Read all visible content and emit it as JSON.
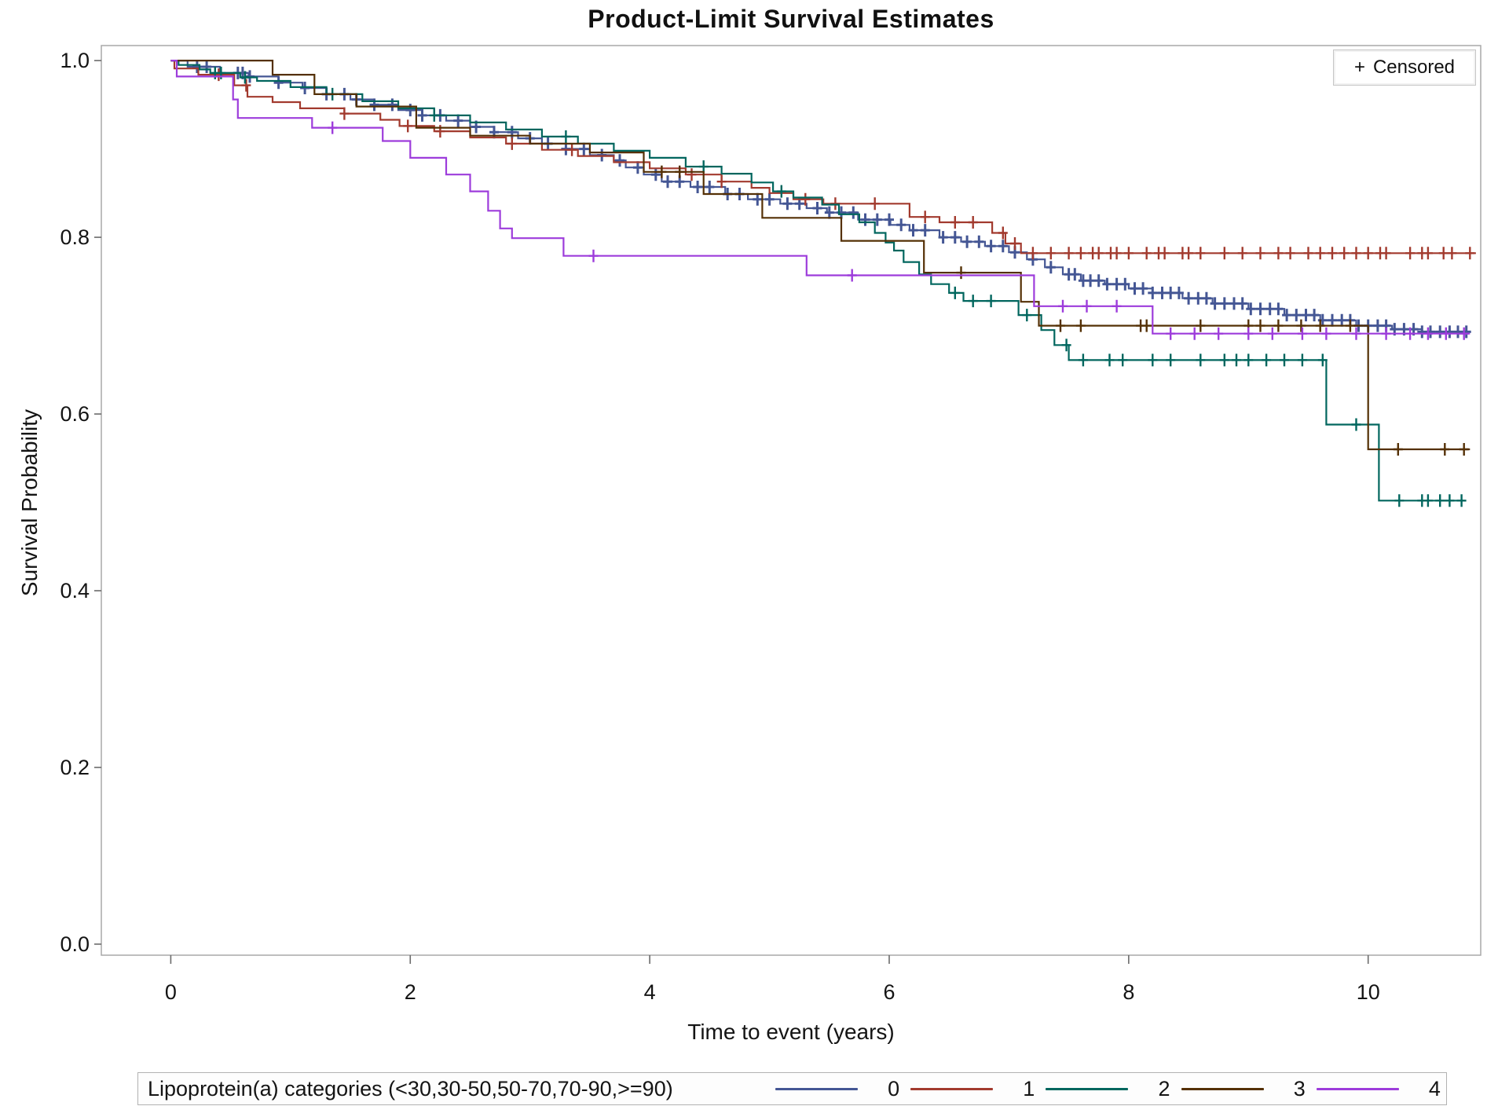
{
  "chart_data": {
    "type": "line",
    "subtype": "kaplan-meier-step-survival",
    "title": "Product-Limit Survival Estimates",
    "xlabel": "Time to event (years)",
    "ylabel": "Survival Probability",
    "xlim": [
      -0.58,
      10.94
    ],
    "ylim": [
      -0.0125,
      1.017
    ],
    "grid": false,
    "x_ticks": [
      0,
      2,
      4,
      6,
      8,
      10
    ],
    "x_tick_labels": [
      "0",
      "2",
      "4",
      "6",
      "8",
      "10"
    ],
    "y_ticks": [
      0.0,
      0.2,
      0.4,
      0.6,
      0.8,
      1.0
    ],
    "y_tick_labels": [
      "0.0",
      "0.2",
      "0.4",
      "0.6",
      "0.8",
      "1.0"
    ],
    "censored_note": {
      "marker": "+",
      "label": "Censored"
    },
    "legend": {
      "title": "Lipoprotein(a) categories (<30,30-50,50-70,70-90,>=90)",
      "position": "bottom"
    },
    "frame_color": "#a8a8a8",
    "tick_color": "#6b6b6b",
    "series": [
      {
        "name": "0",
        "color": "#445694",
        "line_width": 2.2,
        "censor_width": 3.0,
        "end": 10.85,
        "steps": [
          [
            0,
            1.0
          ],
          [
            0.14,
            0.993
          ],
          [
            0.41,
            0.986
          ],
          [
            0.65,
            0.982
          ],
          [
            0.9,
            0.975
          ],
          [
            1.1,
            0.969
          ],
          [
            1.3,
            0.962
          ],
          [
            1.5,
            0.956
          ],
          [
            1.7,
            0.95
          ],
          [
            1.9,
            0.944
          ],
          [
            2.1,
            0.938
          ],
          [
            2.3,
            0.932
          ],
          [
            2.5,
            0.925
          ],
          [
            2.7,
            0.919
          ],
          [
            2.9,
            0.912
          ],
          [
            3.1,
            0.906
          ],
          [
            3.3,
            0.9
          ],
          [
            3.5,
            0.893
          ],
          [
            3.7,
            0.887
          ],
          [
            3.8,
            0.879
          ],
          [
            3.95,
            0.871
          ],
          [
            4.1,
            0.863
          ],
          [
            4.34,
            0.857
          ],
          [
            4.63,
            0.849
          ],
          [
            4.82,
            0.843
          ],
          [
            5.09,
            0.838
          ],
          [
            5.31,
            0.833
          ],
          [
            5.48,
            0.828
          ],
          [
            5.74,
            0.82
          ],
          [
            6.01,
            0.814
          ],
          [
            6.17,
            0.808
          ],
          [
            6.42,
            0.8
          ],
          [
            6.6,
            0.795
          ],
          [
            6.8,
            0.79
          ],
          [
            7.0,
            0.783
          ],
          [
            7.15,
            0.775
          ],
          [
            7.3,
            0.766
          ],
          [
            7.45,
            0.758
          ],
          [
            7.6,
            0.751
          ],
          [
            7.8,
            0.747
          ],
          [
            8.0,
            0.742
          ],
          [
            8.2,
            0.737
          ],
          [
            8.45,
            0.731
          ],
          [
            8.7,
            0.725
          ],
          [
            9.0,
            0.719
          ],
          [
            9.3,
            0.712
          ],
          [
            9.6,
            0.706
          ],
          [
            9.9,
            0.7
          ],
          [
            10.2,
            0.696
          ],
          [
            10.45,
            0.693
          ]
        ],
        "censors": [
          0.22,
          0.3,
          0.56,
          0.6,
          0.66,
          0.9,
          1.12,
          1.3,
          1.45,
          1.55,
          1.7,
          1.85,
          2.0,
          2.1,
          2.25,
          2.4,
          2.55,
          2.7,
          2.85,
          3.0,
          3.15,
          3.3,
          3.45,
          3.6,
          3.75,
          3.9,
          4.05,
          4.15,
          4.25,
          4.4,
          4.5,
          4.65,
          4.75,
          4.9,
          5.0,
          5.15,
          5.25,
          5.4,
          5.5,
          5.6,
          5.7,
          5.8,
          5.9,
          6.0,
          6.1,
          6.2,
          6.3,
          6.45,
          6.55,
          6.65,
          6.75,
          6.85,
          6.95,
          7.05,
          7.2,
          7.35,
          7.5,
          7.55,
          7.62,
          7.68,
          7.75,
          7.82,
          7.9,
          7.97,
          8.05,
          8.12,
          8.2,
          8.28,
          8.35,
          8.42,
          8.5,
          8.58,
          8.65,
          8.72,
          8.8,
          8.88,
          8.95,
          9.02,
          9.1,
          9.18,
          9.25,
          9.32,
          9.4,
          9.48,
          9.55,
          9.62,
          9.7,
          9.78,
          9.85,
          9.92,
          10.0,
          10.08,
          10.15,
          10.22,
          10.3,
          10.38,
          10.45,
          10.52,
          10.6,
          10.68,
          10.75,
          10.82
        ]
      },
      {
        "name": "1",
        "color": "#A23A2E",
        "line_width": 2.2,
        "censor_width": 2.4,
        "end": 10.9,
        "steps": [
          [
            0,
            1.0
          ],
          [
            0.03,
            0.991
          ],
          [
            0.23,
            0.984
          ],
          [
            0.53,
            0.972
          ],
          [
            0.64,
            0.959
          ],
          [
            0.85,
            0.953
          ],
          [
            1.08,
            0.946
          ],
          [
            1.45,
            0.94
          ],
          [
            1.75,
            0.933
          ],
          [
            1.91,
            0.926
          ],
          [
            2.2,
            0.92
          ],
          [
            2.5,
            0.913
          ],
          [
            2.8,
            0.906
          ],
          [
            3.1,
            0.899
          ],
          [
            3.4,
            0.892
          ],
          [
            3.7,
            0.885
          ],
          [
            4.0,
            0.878
          ],
          [
            4.3,
            0.871
          ],
          [
            4.6,
            0.863
          ],
          [
            4.85,
            0.856
          ],
          [
            5.0,
            0.85
          ],
          [
            5.2,
            0.843
          ],
          [
            5.45,
            0.838
          ],
          [
            6.17,
            0.823
          ],
          [
            6.42,
            0.817
          ],
          [
            6.86,
            0.805
          ],
          [
            6.97,
            0.793
          ],
          [
            7.1,
            0.782
          ]
        ],
        "censors": [
          0.4,
          0.63,
          1.45,
          1.98,
          2.25,
          2.85,
          3.35,
          4.35,
          4.6,
          5.3,
          5.55,
          5.88,
          6.3,
          6.55,
          6.7,
          6.95,
          7.05,
          7.2,
          7.35,
          7.5,
          7.6,
          7.7,
          7.75,
          7.85,
          7.9,
          8.0,
          8.15,
          8.25,
          8.3,
          8.45,
          8.5,
          8.6,
          8.8,
          8.95,
          9.1,
          9.25,
          9.35,
          9.5,
          9.6,
          9.7,
          9.8,
          9.9,
          10.0,
          10.1,
          10.15,
          10.35,
          10.45,
          10.5,
          10.63,
          10.7,
          10.85
        ]
      },
      {
        "name": "2",
        "color": "#01665E",
        "line_width": 2.2,
        "censor_width": 2.4,
        "end": 10.8,
        "steps": [
          [
            0,
            1.0
          ],
          [
            0.065,
            0.995
          ],
          [
            0.24,
            0.99
          ],
          [
            0.33,
            0.986
          ],
          [
            0.58,
            0.981
          ],
          [
            0.72,
            0.977
          ],
          [
            1.0,
            0.97
          ],
          [
            1.3,
            0.962
          ],
          [
            1.6,
            0.954
          ],
          [
            1.9,
            0.946
          ],
          [
            2.2,
            0.938
          ],
          [
            2.5,
            0.93
          ],
          [
            2.8,
            0.922
          ],
          [
            3.1,
            0.914
          ],
          [
            3.4,
            0.906
          ],
          [
            3.7,
            0.898
          ],
          [
            4.0,
            0.89
          ],
          [
            4.3,
            0.88
          ],
          [
            4.6,
            0.872
          ],
          [
            4.85,
            0.862
          ],
          [
            5.03,
            0.852
          ],
          [
            5.2,
            0.845
          ],
          [
            5.44,
            0.837
          ],
          [
            5.58,
            0.826
          ],
          [
            5.75,
            0.817
          ],
          [
            5.88,
            0.805
          ],
          [
            5.97,
            0.794
          ],
          [
            6.04,
            0.785
          ],
          [
            6.12,
            0.772
          ],
          [
            6.25,
            0.758
          ],
          [
            6.35,
            0.747
          ],
          [
            6.5,
            0.737
          ],
          [
            6.62,
            0.728
          ],
          [
            7.08,
            0.712
          ],
          [
            7.27,
            0.695
          ],
          [
            7.38,
            0.678
          ],
          [
            7.5,
            0.661
          ],
          [
            9.65,
            0.588
          ],
          [
            10.09,
            0.502
          ]
        ],
        "censors": [
          0.37,
          0.42,
          0.62,
          1.35,
          2.2,
          3.3,
          4.45,
          5.1,
          6.55,
          6.7,
          6.85,
          7.15,
          7.48,
          7.62,
          7.84,
          7.95,
          8.2,
          8.35,
          8.6,
          8.8,
          8.9,
          9.0,
          9.15,
          9.3,
          9.45,
          9.62,
          9.9,
          10.26,
          10.45,
          10.5,
          10.6,
          10.68,
          10.78
        ]
      },
      {
        "name": "3",
        "color": "#543005",
        "line_width": 2.2,
        "censor_width": 2.4,
        "end": 10.85,
        "steps": [
          [
            0,
            1.0
          ],
          [
            0.85,
            0.984
          ],
          [
            1.2,
            0.962
          ],
          [
            1.55,
            0.948
          ],
          [
            2.05,
            0.924
          ],
          [
            2.5,
            0.915
          ],
          [
            3.0,
            0.906
          ],
          [
            3.5,
            0.896
          ],
          [
            3.95,
            0.874
          ],
          [
            4.45,
            0.849
          ],
          [
            4.94,
            0.822
          ],
          [
            5.6,
            0.796
          ],
          [
            6.29,
            0.76
          ],
          [
            7.1,
            0.727
          ],
          [
            7.25,
            0.7
          ],
          [
            10.0,
            0.56
          ]
        ],
        "censors": [
          4.1,
          4.25,
          6.6,
          7.43,
          7.6,
          8.1,
          8.15,
          8.6,
          9.0,
          9.1,
          9.25,
          9.44,
          9.6,
          9.85,
          10.25,
          10.64,
          10.8
        ]
      },
      {
        "name": "4",
        "color": "#9D3CDB",
        "line_width": 2.2,
        "censor_width": 2.4,
        "end": 10.85,
        "steps": [
          [
            0,
            1.0
          ],
          [
            0.05,
            0.982
          ],
          [
            0.52,
            0.956
          ],
          [
            0.56,
            0.935
          ],
          [
            1.18,
            0.924
          ],
          [
            1.77,
            0.909
          ],
          [
            2.0,
            0.89
          ],
          [
            2.3,
            0.871
          ],
          [
            2.5,
            0.852
          ],
          [
            2.65,
            0.83
          ],
          [
            2.75,
            0.81
          ],
          [
            2.85,
            0.799
          ],
          [
            3.28,
            0.779
          ],
          [
            5.31,
            0.757
          ],
          [
            7.21,
            0.722
          ],
          [
            8.2,
            0.691
          ]
        ],
        "censors": [
          1.35,
          3.53,
          5.69,
          7.45,
          7.65,
          7.9,
          8.35,
          8.55,
          8.75,
          9.0,
          9.2,
          9.45,
          9.65,
          9.9,
          10.15,
          10.35,
          10.5,
          10.65,
          10.8
        ]
      }
    ]
  }
}
